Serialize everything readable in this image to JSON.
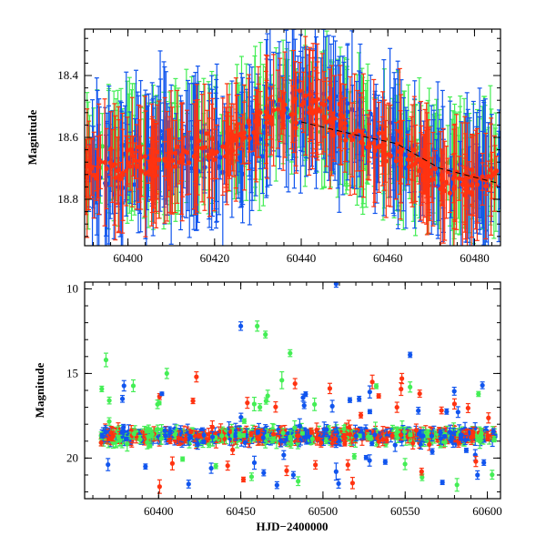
{
  "colors": {
    "green": "#44ee55",
    "blue": "#1155ee",
    "red": "#ff3311",
    "frame": "#000000"
  },
  "chart_data": [
    {
      "type": "scatter",
      "panel": "top",
      "xlabel": "",
      "ylabel": "Magnitude",
      "xlim": [
        60390,
        60486
      ],
      "ylim": [
        18.95,
        18.25
      ],
      "y_inverted": true,
      "x_major_ticks": [
        60400,
        60420,
        60440,
        60460,
        60480
      ],
      "x_tick_labels": [
        "60400",
        "60420",
        "60440",
        "60460",
        "60480"
      ],
      "y_major_ticks": [
        18.4,
        18.6,
        18.8
      ],
      "y_tick_labels": [
        "18.4",
        "18.6",
        "18.8"
      ],
      "error_bars": true,
      "series": [
        {
          "color_key": "green",
          "segments": [
            [
              60390,
              18.68
            ],
            [
              60398,
              18.64
            ],
            [
              60406,
              18.67
            ],
            [
              60414,
              18.62
            ],
            [
              60422,
              18.63
            ],
            [
              60430,
              18.56
            ],
            [
              60436,
              18.5
            ],
            [
              60442,
              18.52
            ],
            [
              60450,
              18.56
            ],
            [
              60456,
              18.62
            ],
            [
              60462,
              18.64
            ],
            [
              60470,
              18.66
            ],
            [
              60478,
              18.72
            ],
            [
              60486,
              18.68
            ]
          ],
          "spread": 0.05,
          "err": 0.09
        },
        {
          "color_key": "blue",
          "segments": [
            [
              60390,
              18.72
            ],
            [
              60398,
              18.7
            ],
            [
              60406,
              18.66
            ],
            [
              60414,
              18.64
            ],
            [
              60422,
              18.66
            ],
            [
              60428,
              18.62
            ],
            [
              60434,
              18.5
            ],
            [
              60442,
              18.49
            ],
            [
              60450,
              18.53
            ],
            [
              60456,
              18.6
            ],
            [
              60462,
              18.62
            ],
            [
              60470,
              18.7
            ],
            [
              60478,
              18.74
            ],
            [
              60486,
              18.7
            ]
          ],
          "spread": 0.06,
          "err": 0.1
        },
        {
          "color_key": "red",
          "segments": [
            [
              60390,
              18.72
            ],
            [
              60396,
              18.69
            ],
            [
              60404,
              18.68
            ],
            [
              60412,
              18.66
            ],
            [
              60420,
              18.64
            ],
            [
              60426,
              18.6
            ],
            [
              60434,
              18.51
            ],
            [
              60442,
              18.5
            ],
            [
              60448,
              18.56
            ],
            [
              60456,
              18.63
            ],
            [
              60462,
              18.64
            ],
            [
              60470,
              18.72
            ],
            [
              60478,
              18.76
            ],
            [
              60486,
              18.72
            ]
          ],
          "spread": 0.04,
          "err": 0.08
        }
      ],
      "trend_line": [
        [
          60440,
          18.55
        ],
        [
          60452,
          18.59
        ],
        [
          60462,
          18.62
        ],
        [
          60472,
          18.7
        ],
        [
          60486,
          18.75
        ]
      ]
    },
    {
      "type": "scatter",
      "panel": "bottom",
      "xlabel": "HJD−2400000",
      "ylabel": "Magnitude",
      "xlim": [
        60355,
        60608
      ],
      "ylim": [
        22.4,
        9.6
      ],
      "y_inverted": true,
      "x_major_ticks": [
        60400,
        60450,
        60500,
        60550,
        60600
      ],
      "x_tick_labels": [
        "60400",
        "60450",
        "60500",
        "60550",
        "60600"
      ],
      "y_major_ticks": [
        10,
        15,
        20
      ],
      "y_tick_labels": [
        "10",
        "15",
        "20"
      ],
      "error_bars": true,
      "baseline": 18.7,
      "baseline_spread": 0.35,
      "outliers": [
        {
          "color_key": "blue",
          "x": 60450,
          "y": 12.2,
          "err": 0.25
        },
        {
          "color_key": "green",
          "x": 60460,
          "y": 12.2,
          "err": 0.3
        },
        {
          "color_key": "green",
          "x": 60465,
          "y": 12.7,
          "err": 0.2
        },
        {
          "color_key": "green",
          "x": 60368,
          "y": 14.2,
          "err": 0.4
        },
        {
          "color_key": "green",
          "x": 60480,
          "y": 13.8,
          "err": 0.2
        },
        {
          "color_key": "blue",
          "x": 60508,
          "y": 9.7,
          "err": 0.2
        },
        {
          "color_key": "blue",
          "x": 60553,
          "y": 13.9,
          "err": 0.15
        },
        {
          "color_key": "red",
          "x": 60423,
          "y": 15.2,
          "err": 0.3
        },
        {
          "color_key": "green",
          "x": 60475,
          "y": 15.4,
          "err": 0.5
        },
        {
          "color_key": "red",
          "x": 60483,
          "y": 15.6,
          "err": 0.3
        },
        {
          "color_key": "blue",
          "x": 60597,
          "y": 15.7,
          "err": 0.2
        },
        {
          "color_key": "red",
          "x": 60530,
          "y": 15.5,
          "err": 0.4
        },
        {
          "color_key": "red",
          "x": 60548,
          "y": 15.3,
          "err": 0.3
        },
        {
          "color_key": "green",
          "x": 60405,
          "y": 15.0,
          "err": 0.3
        },
        {
          "color_key": "blue",
          "x": 60472,
          "y": 21.6,
          "err": 0.2
        },
        {
          "color_key": "blue",
          "x": 60392,
          "y": 20.5,
          "err": 0.15
        },
        {
          "color_key": "blue",
          "x": 60508,
          "y": 20.8,
          "err": 0.5
        },
        {
          "color_key": "blue",
          "x": 60482,
          "y": 21.0,
          "err": 0.2
        },
        {
          "color_key": "red",
          "x": 60560,
          "y": 20.8,
          "err": 0.2
        },
        {
          "color_key": "blue",
          "x": 60432,
          "y": 20.6,
          "err": 0.3
        },
        {
          "color_key": "red",
          "x": 60593,
          "y": 20.2,
          "err": 0.3
        },
        {
          "color_key": "blue",
          "x": 60402,
          "y": 16.2,
          "err": 0.1
        },
        {
          "color_key": "blue",
          "x": 60378,
          "y": 16.5,
          "err": 0.2
        },
        {
          "color_key": "green",
          "x": 60370,
          "y": 16.6,
          "err": 0.2
        },
        {
          "color_key": "blue",
          "x": 60522,
          "y": 16.5,
          "err": 0.15
        },
        {
          "color_key": "red",
          "x": 60580,
          "y": 16.8,
          "err": 0.3
        },
        {
          "color_key": "green",
          "x": 60553,
          "y": 15.8,
          "err": 0.3
        },
        {
          "color_key": "red",
          "x": 60545,
          "y": 17.0,
          "err": 0.3
        },
        {
          "color_key": "blue",
          "x": 60558,
          "y": 17.2,
          "err": 0.2
        }
      ]
    }
  ]
}
